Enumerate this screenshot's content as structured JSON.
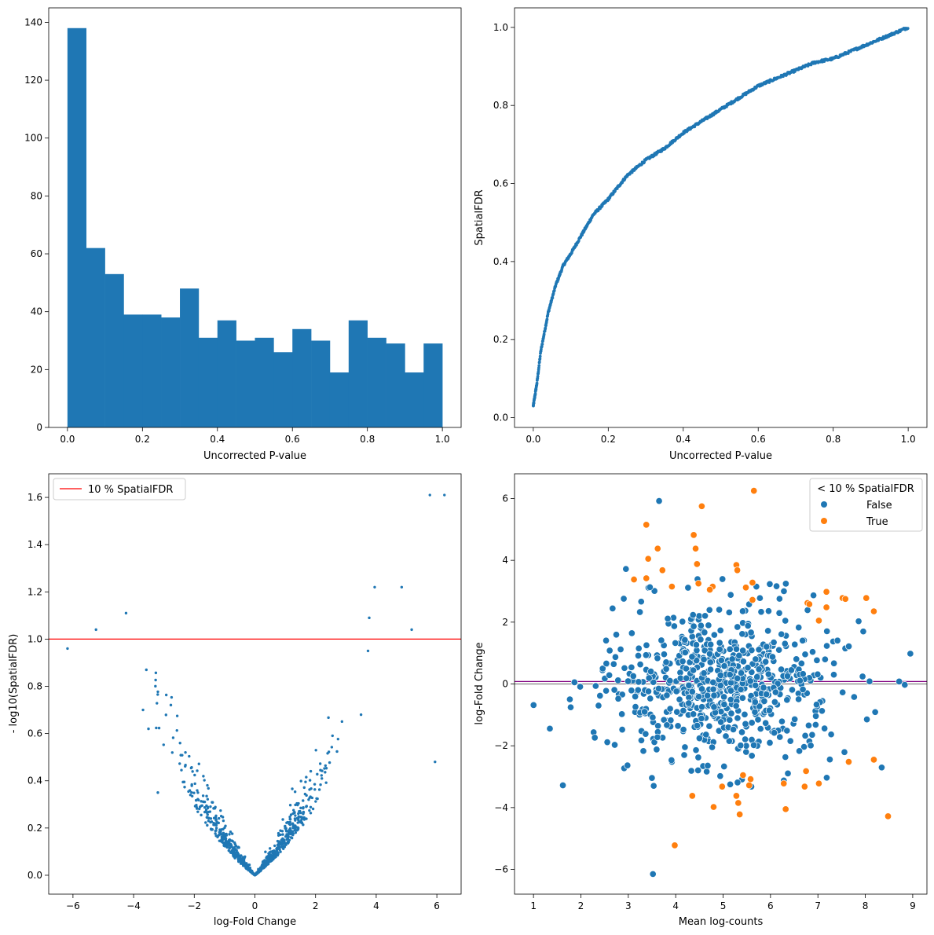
{
  "colors": {
    "blue": "#1f77b4",
    "orange": "#ff7f0e",
    "red": "#ff0000",
    "purple": "#800080",
    "grey": "#808080"
  },
  "chart_data": [
    {
      "type": "bar",
      "subtype": "histogram",
      "xlabel": "Uncorrected P-value",
      "ylabel": "",
      "xlim": [
        -0.05,
        1.05
      ],
      "ylim": [
        0,
        145
      ],
      "xticks": [
        0.0,
        0.2,
        0.4,
        0.6,
        0.8,
        1.0
      ],
      "xtick_labels": [
        "0.0",
        "0.2",
        "0.4",
        "0.6",
        "0.8",
        "1.0"
      ],
      "yticks": [
        0,
        20,
        40,
        60,
        80,
        100,
        120,
        140
      ],
      "ytick_labels": [
        "0",
        "20",
        "40",
        "60",
        "80",
        "100",
        "120",
        "140"
      ],
      "bin_edges": [
        0.0,
        0.05,
        0.1,
        0.15,
        0.2,
        0.25,
        0.3,
        0.35,
        0.4,
        0.45,
        0.5,
        0.55,
        0.6,
        0.65,
        0.7,
        0.75,
        0.8,
        0.85,
        0.9,
        0.95,
        1.0
      ],
      "values": [
        138,
        62,
        53,
        39,
        39,
        38,
        48,
        31,
        37,
        30,
        31,
        26,
        34,
        30,
        19,
        37,
        31,
        29,
        19,
        29
      ],
      "grid": false
    },
    {
      "type": "scatter",
      "xlabel": "Uncorrected P-value",
      "ylabel": "SpatialFDR",
      "xlim": [
        -0.05,
        1.05
      ],
      "ylim": [
        -0.025,
        1.05
      ],
      "xticks": [
        0.0,
        0.2,
        0.4,
        0.6,
        0.8,
        1.0
      ],
      "xtick_labels": [
        "0.0",
        "0.2",
        "0.4",
        "0.6",
        "0.8",
        "1.0"
      ],
      "yticks": [
        0.0,
        0.2,
        0.4,
        0.6,
        0.8,
        1.0
      ],
      "ytick_labels": [
        "0.0",
        "0.2",
        "0.4",
        "0.6",
        "0.8",
        "1.0"
      ],
      "curve_x": [
        0.0,
        0.01,
        0.02,
        0.04,
        0.06,
        0.08,
        0.1,
        0.13,
        0.16,
        0.2,
        0.25,
        0.3,
        0.35,
        0.4,
        0.45,
        0.5,
        0.55,
        0.6,
        0.65,
        0.7,
        0.75,
        0.8,
        0.85,
        0.9,
        0.95,
        1.0
      ],
      "curve_y": [
        0.03,
        0.09,
        0.17,
        0.27,
        0.34,
        0.39,
        0.42,
        0.47,
        0.52,
        0.56,
        0.62,
        0.66,
        0.69,
        0.73,
        0.76,
        0.79,
        0.82,
        0.85,
        0.87,
        0.89,
        0.91,
        0.92,
        0.94,
        0.96,
        0.98,
        1.0
      ],
      "points": 780,
      "grid": false
    },
    {
      "type": "scatter",
      "subtype": "volcano",
      "xlabel": "log-Fold Change",
      "ylabel": "- log10(SpatialFDR)",
      "xlim": [
        -6.8,
        6.8
      ],
      "ylim": [
        -0.08,
        1.7
      ],
      "xticks": [
        -6,
        -4,
        -2,
        0,
        2,
        4,
        6
      ],
      "xtick_labels": [
        "−6",
        "−4",
        "−2",
        "0",
        "2",
        "4",
        "6"
      ],
      "yticks": [
        0.0,
        0.2,
        0.4,
        0.6,
        0.8,
        1.0,
        1.2,
        1.4,
        1.6
      ],
      "ytick_labels": [
        "0.0",
        "0.2",
        "0.4",
        "0.6",
        "0.8",
        "1.0",
        "1.2",
        "1.4",
        "1.6"
      ],
      "threshold": 1.0,
      "legend": {
        "label": "10 % SpatialFDR",
        "placement": "top-left"
      },
      "points": 780,
      "notable_points": [
        {
          "x": 5.77,
          "y": 1.61
        },
        {
          "x": 6.25,
          "y": 1.61
        },
        {
          "x": 4.84,
          "y": 1.22
        },
        {
          "x": 3.95,
          "y": 1.22
        },
        {
          "x": 5.17,
          "y": 1.04
        },
        {
          "x": -5.24,
          "y": 1.04
        },
        {
          "x": -6.18,
          "y": 0.96
        },
        {
          "x": 5.94,
          "y": 0.48
        },
        {
          "x": -4.25,
          "y": 1.11
        },
        {
          "x": 3.77,
          "y": 1.09
        },
        {
          "x": -3.58,
          "y": 0.87
        },
        {
          "x": -3.69,
          "y": 0.7
        },
        {
          "x": -3.51,
          "y": 0.62
        },
        {
          "x": -3.2,
          "y": 0.35
        },
        {
          "x": 3.5,
          "y": 0.68
        },
        {
          "x": 3.73,
          "y": 0.95
        }
      ],
      "grid": false
    },
    {
      "type": "scatter",
      "subtype": "ma-plot",
      "xlabel": "Mean log-counts",
      "ylabel": "log-Fold Change",
      "xlim": [
        0.6,
        9.3
      ],
      "ylim": [
        -6.8,
        6.8
      ],
      "xticks": [
        1,
        2,
        3,
        4,
        5,
        6,
        7,
        8,
        9
      ],
      "xtick_labels": [
        "1",
        "2",
        "3",
        "4",
        "5",
        "6",
        "7",
        "8",
        "9"
      ],
      "yticks": [
        -6,
        -4,
        -2,
        0,
        2,
        4,
        6
      ],
      "ytick_labels": [
        "−6",
        "−4",
        "−2",
        "0",
        "2",
        "4",
        "6"
      ],
      "hlines": [
        0.0,
        0.08
      ],
      "legend": {
        "title": "< 10 % SpatialFDR",
        "entries": [
          "False",
          "True"
        ],
        "placement": "top-right"
      },
      "series": [
        {
          "name": "True",
          "points": [
            [
              5.65,
              6.25
            ],
            [
              4.55,
              5.75
            ],
            [
              3.38,
              5.15
            ],
            [
              4.38,
              4.82
            ],
            [
              3.62,
              4.38
            ],
            [
              4.42,
              4.38
            ],
            [
              3.42,
              4.05
            ],
            [
              4.45,
              3.88
            ],
            [
              5.28,
              3.85
            ],
            [
              5.3,
              3.68
            ],
            [
              3.72,
              3.68
            ],
            [
              3.38,
              3.42
            ],
            [
              3.12,
              3.38
            ],
            [
              3.92,
              3.15
            ],
            [
              5.48,
              3.12
            ],
            [
              4.48,
              3.25
            ],
            [
              4.78,
              3.15
            ],
            [
              4.72,
              3.05
            ],
            [
              5.62,
              3.28
            ],
            [
              5.62,
              2.72
            ],
            [
              7.18,
              2.98
            ],
            [
              6.78,
              2.62
            ],
            [
              7.52,
              2.78
            ],
            [
              7.58,
              2.75
            ],
            [
              8.02,
              2.78
            ],
            [
              6.82,
              2.58
            ],
            [
              7.18,
              2.48
            ],
            [
              8.18,
              2.35
            ],
            [
              7.02,
              2.05
            ],
            [
              8.18,
              -2.45
            ],
            [
              7.65,
              -2.52
            ],
            [
              6.28,
              -3.22
            ],
            [
              6.75,
              -2.82
            ],
            [
              7.02,
              -3.22
            ],
            [
              6.72,
              -3.32
            ],
            [
              5.58,
              -3.08
            ],
            [
              5.42,
              -2.95
            ],
            [
              5.55,
              -3.28
            ],
            [
              4.98,
              -3.32
            ],
            [
              4.35,
              -3.62
            ],
            [
              5.28,
              -3.62
            ],
            [
              5.32,
              -3.85
            ],
            [
              4.8,
              -3.98
            ],
            [
              5.35,
              -4.22
            ],
            [
              6.32,
              -4.05
            ],
            [
              8.48,
              -4.28
            ],
            [
              3.98,
              -5.22
            ]
          ]
        }
      ],
      "grid": false
    }
  ]
}
